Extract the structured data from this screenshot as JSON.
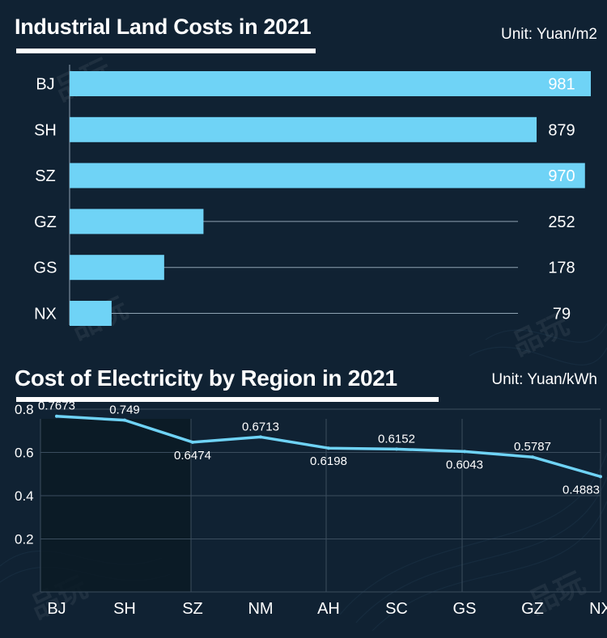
{
  "colors": {
    "background": "#102233",
    "bar": "#6fd3f6",
    "line": "#6fd3f6",
    "grid": "#3b4d5e",
    "highlight": "#0b1a24"
  },
  "watermark": "品玩",
  "chart_data": [
    {
      "type": "bar",
      "orientation": "horizontal",
      "title": "Industrial Land Costs in 2021",
      "unit": "Unit: Yuan/m2",
      "categories": [
        "BJ",
        "SH",
        "SZ",
        "GZ",
        "GS",
        "NX"
      ],
      "values": [
        981,
        879,
        970,
        252,
        178,
        79
      ],
      "xlim": [
        0,
        981
      ]
    },
    {
      "type": "line",
      "title": "Cost of Electricity by Region in 2021",
      "unit": "Unit: Yuan/kWh",
      "categories": [
        "BJ",
        "SH",
        "SZ",
        "NM",
        "AH",
        "SC",
        "GS",
        "GZ",
        "NX"
      ],
      "values": [
        0.7673,
        0.749,
        0.6474,
        0.6713,
        0.6198,
        0.6152,
        0.6043,
        0.5787,
        0.4883
      ],
      "value_labels": [
        "0.7673",
        "0.749",
        "0.6474",
        "0.6713",
        "0.6198",
        "0.6152",
        "0.6043",
        "0.5787",
        "0.4883"
      ],
      "label_positions": [
        "above",
        "above",
        "below",
        "above",
        "below",
        "above",
        "below",
        "above",
        "below"
      ],
      "yticks": [
        "0.2",
        "0.4",
        "0.6",
        "0.8"
      ],
      "ylim": [
        0,
        0.8
      ],
      "highlight_categories": [
        "BJ",
        "SH"
      ]
    }
  ]
}
